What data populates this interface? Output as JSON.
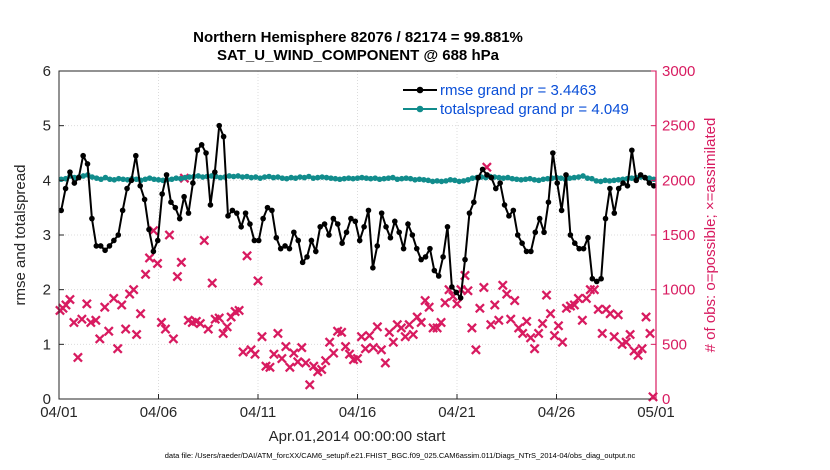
{
  "chart_data": {
    "type": "line",
    "title": "Northern Hemisphere 82076 / 82174 = 99.881%",
    "subtitle": "SAT_U_WIND_COMPONENT @ 688 hPa",
    "xlabel": "Apr.01,2014 00:00:00 start",
    "ylabel_left": "rmse and totalspread",
    "ylabel_right": "# of obs: o=possible; ×=assimilated",
    "footnote": "data file: /Users/raeder/DAI/ATM_forcXX/CAM6_setup/f.e21.FHIST_BGC.f09_025.CAM6assim.011/Diags_NTrS_2014-04/obs_diag_output.nc",
    "xlim": [
      0,
      30
    ],
    "ylim_left": [
      0,
      6
    ],
    "ylim_right": [
      0,
      3000
    ],
    "x_ticks": [
      0,
      5,
      10,
      15,
      20,
      25,
      30
    ],
    "x_tick_labels": [
      "04/01",
      "04/06",
      "04/11",
      "04/16",
      "04/21",
      "04/26",
      "05/01"
    ],
    "y_left_ticks": [
      "0",
      "1",
      "2",
      "3",
      "4",
      "5",
      "6"
    ],
    "y_right_ticks": [
      "0",
      "500",
      "1000",
      "1500",
      "2000",
      "2500",
      "3000"
    ],
    "grid": true,
    "legend_position": "top-right",
    "colors": {
      "rmse": "#000000",
      "spread": "#118c8c",
      "obs": "#d81b60",
      "legend_text": "#0a4fd8",
      "right_axis": "#d81b60"
    },
    "series": [
      {
        "name": "rmse grand pr = 3.4463",
        "axis": "left",
        "values": [
          3.45,
          3.85,
          4.15,
          3.95,
          4.05,
          4.45,
          4.3,
          3.3,
          2.8,
          2.8,
          2.72,
          2.8,
          2.9,
          3.0,
          3.45,
          3.85,
          4.0,
          4.45,
          3.9,
          3.65,
          3.1,
          2.7,
          2.9,
          3.75,
          4.1,
          3.6,
          3.5,
          3.3,
          3.7,
          3.4,
          3.95,
          4.55,
          4.65,
          4.5,
          3.55,
          4.15,
          5.0,
          4.8,
          3.35,
          3.45,
          3.4,
          3.15,
          3.4,
          3.2,
          2.9,
          2.9,
          3.3,
          3.5,
          3.45,
          2.95,
          2.75,
          2.8,
          2.75,
          3.05,
          2.9,
          2.5,
          2.6,
          2.9,
          2.7,
          3.15,
          3.2,
          3.0,
          3.3,
          3.2,
          2.85,
          3.05,
          3.3,
          3.25,
          2.9,
          3.15,
          3.45,
          2.4,
          2.8,
          3.4,
          3.15,
          2.95,
          3.25,
          3.05,
          2.75,
          3.2,
          3.0,
          2.75,
          2.55,
          2.6,
          2.75,
          2.35,
          2.25,
          2.6,
          3.15,
          2.05,
          1.95,
          1.85,
          2.55,
          3.4,
          3.6,
          4.05,
          4.2,
          4.1,
          4.05,
          3.85,
          3.95,
          3.55,
          3.35,
          3.45,
          3.0,
          2.85,
          2.7,
          2.7,
          3.05,
          3.3,
          3.05,
          3.6,
          4.5,
          3.95,
          3.45,
          4.1,
          3.0,
          2.85,
          2.75,
          2.75,
          2.95,
          2.2,
          2.15,
          2.2,
          3.3,
          3.85,
          3.4,
          3.85,
          3.95,
          3.9,
          4.55,
          4.0,
          4.1,
          4.05,
          3.95,
          3.9
        ]
      },
      {
        "name": "totalspread grand pr = 4.049",
        "axis": "left",
        "values": [
          4.02,
          4.03,
          4.08,
          4.05,
          4.06,
          4.08,
          4.1,
          4.06,
          4.04,
          4.02,
          4.05,
          4.02,
          4.01,
          4.03,
          4.02,
          4.01,
          4.03,
          4.02,
          4.0,
          4.02,
          4.04,
          4.02,
          4.01,
          4.0,
          4.01,
          4.02,
          4.04,
          4.03,
          4.05,
          4.06,
          4.07,
          4.08,
          4.06,
          4.07,
          4.08,
          4.07,
          4.05,
          4.06,
          4.08,
          4.07,
          4.08,
          4.06,
          4.07,
          4.05,
          4.06,
          4.04,
          4.06,
          4.07,
          4.05,
          4.06,
          4.04,
          4.03,
          4.05,
          4.04,
          4.06,
          4.05,
          4.07,
          4.04,
          4.05,
          4.06,
          4.05,
          4.04,
          4.03,
          4.02,
          4.03,
          4.04,
          4.03,
          4.04,
          4.05,
          4.04,
          4.03,
          4.04,
          4.02,
          4.03,
          4.04,
          4.05,
          4.02,
          4.03,
          4.04,
          4.03,
          4.01,
          4.02,
          4.01,
          4.0,
          3.98,
          3.99,
          3.98,
          3.99,
          4.01,
          4.0,
          3.98,
          3.99,
          4.01,
          4.04,
          4.05,
          4.06,
          4.05,
          4.07,
          4.06,
          4.05,
          4.04,
          4.05,
          4.03,
          4.02,
          4.01,
          4.02,
          4.03,
          4.01,
          4.0,
          4.02,
          4.03,
          4.04,
          4.05,
          4.04,
          4.02,
          4.04,
          4.05,
          4.06,
          4.08,
          4.04,
          4.03,
          3.99,
          3.98,
          4.0,
          3.99,
          4.0,
          4.01,
          4.02,
          4.03,
          4.04,
          4.05,
          4.06,
          4.05,
          4.04,
          4.02
        ]
      },
      {
        "name": "# of obs assimilated",
        "axis": "right",
        "marker": "x",
        "points": [
          [
            0.05,
            810
          ],
          [
            0.2,
            830
          ],
          [
            0.35,
            860
          ],
          [
            0.55,
            910
          ],
          [
            0.75,
            700
          ],
          [
            0.95,
            380
          ],
          [
            1.15,
            730
          ],
          [
            1.4,
            870
          ],
          [
            1.6,
            700
          ],
          [
            1.85,
            720
          ],
          [
            2.05,
            550
          ],
          [
            2.3,
            840
          ],
          [
            2.5,
            620
          ],
          [
            2.75,
            920
          ],
          [
            2.95,
            460
          ],
          [
            3.15,
            860
          ],
          [
            3.35,
            640
          ],
          [
            3.55,
            960
          ],
          [
            3.75,
            1000
          ],
          [
            3.9,
            590
          ],
          [
            4.1,
            780
          ],
          [
            4.35,
            1140
          ],
          [
            4.55,
            1290
          ],
          [
            4.75,
            1540
          ],
          [
            4.95,
            1240
          ],
          [
            5.15,
            700
          ],
          [
            5.35,
            640
          ],
          [
            5.55,
            1500
          ],
          [
            5.75,
            550
          ],
          [
            5.95,
            1120
          ],
          [
            6.15,
            1250
          ],
          [
            6.3,
            2020
          ],
          [
            6.5,
            720
          ],
          [
            6.7,
            700
          ],
          [
            6.9,
            710
          ],
          [
            7.1,
            690
          ],
          [
            7.3,
            1450
          ],
          [
            7.5,
            640
          ],
          [
            7.7,
            1060
          ],
          [
            7.85,
            730
          ],
          [
            8.05,
            740
          ],
          [
            8.25,
            600
          ],
          [
            8.45,
            660
          ],
          [
            8.65,
            750
          ],
          [
            8.85,
            800
          ],
          [
            9.05,
            810
          ],
          [
            9.25,
            430
          ],
          [
            9.45,
            1310
          ],
          [
            9.65,
            450
          ],
          [
            9.85,
            410
          ],
          [
            10.0,
            1080
          ],
          [
            10.2,
            570
          ],
          [
            10.4,
            300
          ],
          [
            10.6,
            290
          ],
          [
            10.8,
            410
          ],
          [
            11.0,
            600
          ],
          [
            11.2,
            370
          ],
          [
            11.4,
            480
          ],
          [
            11.6,
            290
          ],
          [
            11.8,
            420
          ],
          [
            12.0,
            340
          ],
          [
            12.2,
            470
          ],
          [
            12.4,
            330
          ],
          [
            12.6,
            130
          ],
          [
            12.8,
            300
          ],
          [
            13.0,
            250
          ],
          [
            13.2,
            270
          ],
          [
            13.4,
            350
          ],
          [
            13.6,
            520
          ],
          [
            13.8,
            420
          ],
          [
            14.0,
            620
          ],
          [
            14.2,
            610
          ],
          [
            14.4,
            480
          ],
          [
            14.6,
            410
          ],
          [
            14.8,
            360
          ],
          [
            15.0,
            370
          ],
          [
            15.2,
            570
          ],
          [
            15.4,
            460
          ],
          [
            15.6,
            580
          ],
          [
            15.8,
            470
          ],
          [
            16.0,
            660
          ],
          [
            16.2,
            450
          ],
          [
            16.4,
            330
          ],
          [
            16.6,
            610
          ],
          [
            16.8,
            520
          ],
          [
            17.0,
            680
          ],
          [
            17.2,
            650
          ],
          [
            17.4,
            570
          ],
          [
            17.6,
            680
          ],
          [
            17.8,
            590
          ],
          [
            18.0,
            750
          ],
          [
            18.2,
            700
          ],
          [
            18.4,
            900
          ],
          [
            18.6,
            840
          ],
          [
            18.8,
            650
          ],
          [
            19.0,
            650
          ],
          [
            19.2,
            700
          ],
          [
            19.4,
            880
          ],
          [
            19.6,
            1000
          ],
          [
            19.8,
            940
          ],
          [
            20.0,
            870
          ],
          [
            20.2,
            1000
          ],
          [
            20.4,
            1130
          ],
          [
            20.55,
            990
          ],
          [
            20.75,
            650
          ],
          [
            20.95,
            450
          ],
          [
            21.15,
            830
          ],
          [
            21.35,
            1020
          ],
          [
            21.5,
            2120
          ],
          [
            21.7,
            680
          ],
          [
            21.9,
            860
          ],
          [
            22.1,
            720
          ],
          [
            22.3,
            1040
          ],
          [
            22.5,
            960
          ],
          [
            22.7,
            730
          ],
          [
            22.9,
            900
          ],
          [
            23.1,
            650
          ],
          [
            23.3,
            600
          ],
          [
            23.5,
            710
          ],
          [
            23.7,
            560
          ],
          [
            23.9,
            460
          ],
          [
            24.1,
            600
          ],
          [
            24.3,
            690
          ],
          [
            24.5,
            950
          ],
          [
            24.7,
            780
          ],
          [
            24.9,
            580
          ],
          [
            25.1,
            670
          ],
          [
            25.3,
            520
          ],
          [
            25.5,
            830
          ],
          [
            25.7,
            850
          ],
          [
            25.9,
            860
          ],
          [
            26.1,
            920
          ],
          [
            26.3,
            720
          ],
          [
            26.5,
            920
          ],
          [
            26.7,
            1000
          ],
          [
            26.9,
            1000
          ],
          [
            27.1,
            820
          ],
          [
            27.3,
            600
          ],
          [
            27.5,
            820
          ],
          [
            27.7,
            780
          ],
          [
            27.9,
            570
          ],
          [
            28.1,
            770
          ],
          [
            28.3,
            500
          ],
          [
            28.5,
            520
          ],
          [
            28.7,
            590
          ],
          [
            28.9,
            440
          ],
          [
            29.1,
            400
          ],
          [
            29.3,
            460
          ],
          [
            29.5,
            750
          ],
          [
            29.7,
            600
          ],
          [
            29.85,
            20
          ]
        ]
      }
    ]
  }
}
